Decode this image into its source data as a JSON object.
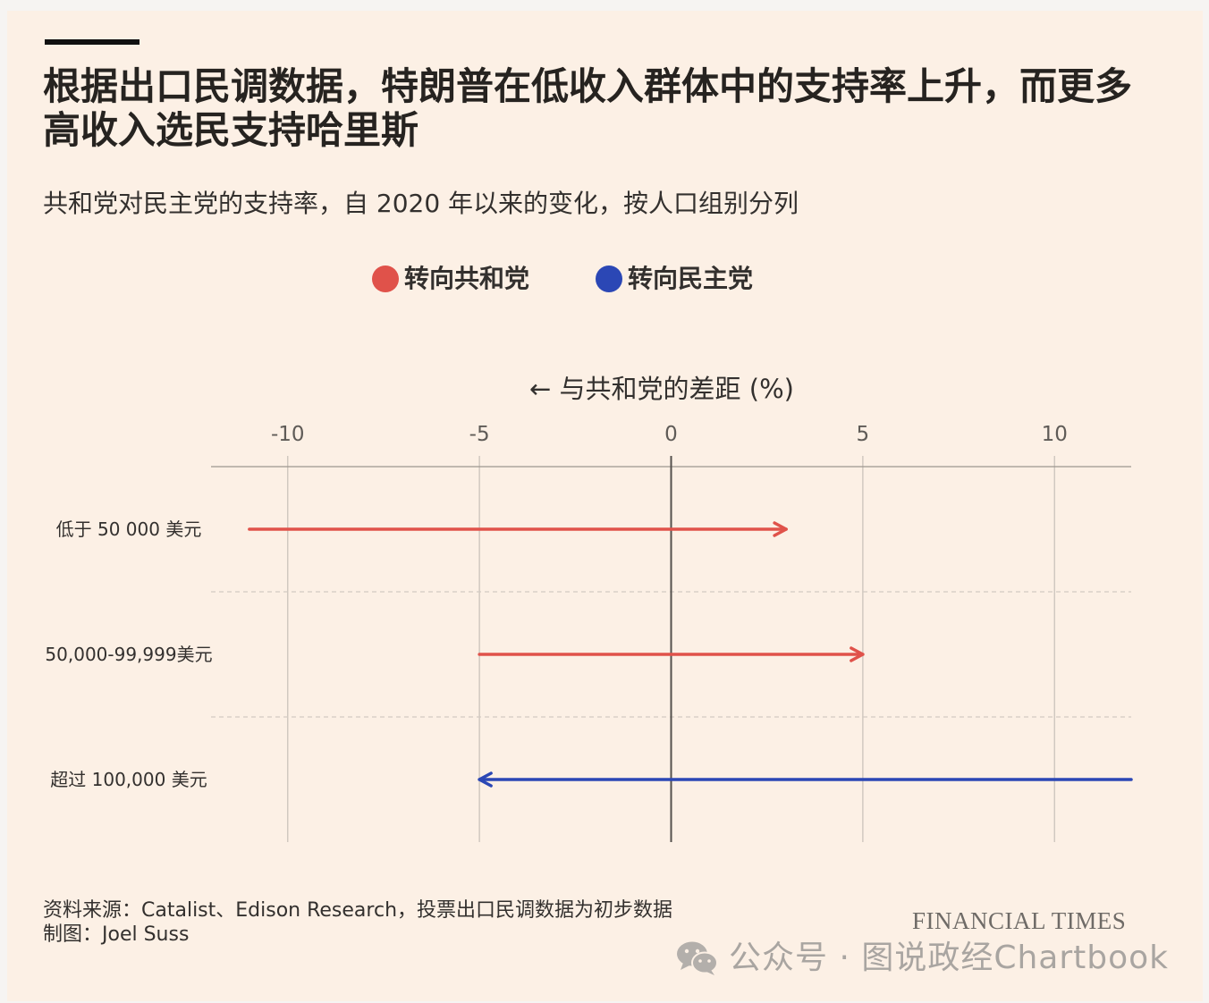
{
  "chart_data": {
    "type": "bar",
    "mark": "arrow",
    "orientation": "horizontal",
    "title": "根据出口民调数据，特朗普在低收入群体中的支持率上升，而更多高收入选民支持哈里斯",
    "subtitle": "共和党对民主党的支持率，自 2020 年以来的变化，按人口组别分列",
    "xlabel": "← 与共和党的差距 (%)",
    "xlim": [
      -12,
      12
    ],
    "xticks": [
      -10,
      -5,
      0,
      5,
      10
    ],
    "grid": true,
    "legend": "top-center",
    "categories": [
      "低于 50 000 美元",
      "50,000-99,999美元",
      "超过 100,000 美元"
    ],
    "series": [
      {
        "name": "转向共和党",
        "color": "#e0524a",
        "values": [
          {
            "from": -11,
            "to": 3
          },
          {
            "from": -5,
            "to": 5
          },
          null
        ]
      },
      {
        "name": "转向民主党",
        "color": "#2b47b5",
        "values": [
          null,
          null,
          {
            "from": 12,
            "to": -5
          }
        ]
      }
    ]
  },
  "footer": {
    "source": "资料来源：Catalist、Edison Research，投票出口民调数据为初步数据",
    "credit": "制图：Joel Suss",
    "brand": "FINANCIAL TIMES"
  },
  "watermark": {
    "icon": "wechat-icon",
    "text": "公众号 · 图说政经Chartbook"
  }
}
